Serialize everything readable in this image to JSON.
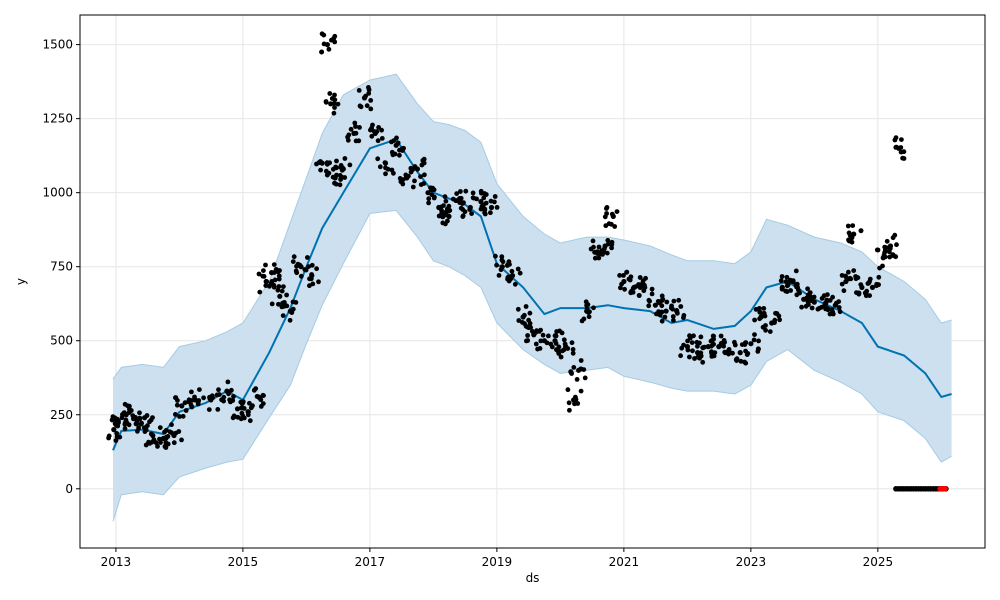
{
  "chart_data": {
    "type": "line",
    "title": "",
    "xlabel": "ds",
    "ylabel": "y",
    "xlim": [
      "2012-06-08",
      "2026-09-09"
    ],
    "ylim": [
      -200,
      1600
    ],
    "xticks": [
      "2013",
      "2015",
      "2017",
      "2019",
      "2021",
      "2023",
      "2025"
    ],
    "yticks": [
      0,
      250,
      500,
      750,
      1000,
      1250,
      1500
    ],
    "grid": true,
    "legend": "none",
    "colors": {
      "observed": "#000000",
      "forecast_line": "#0072B2",
      "interval_fill": "#cce0ef",
      "interval_edge": "#a6cbe3",
      "highlight": "#ff0000",
      "grid": "#e6e6e6"
    },
    "series": [
      {
        "kind": "forecast_yhat",
        "x": [
          "2012-12-15",
          "2013-02-01",
          "2013-06-01",
          "2013-10-01",
          "2014-01-01",
          "2014-06-01",
          "2014-10-01",
          "2015-01-01",
          "2015-06-01",
          "2015-10-01",
          "2016-01-01",
          "2016-04-01",
          "2016-08-01",
          "2017-01-01",
          "2017-06-01",
          "2017-10-01",
          "2018-01-01",
          "2018-04-01",
          "2018-07-01",
          "2018-10-01",
          "2019-01-01",
          "2019-06-01",
          "2019-10-01",
          "2020-01-01",
          "2020-06-01",
          "2020-10-01",
          "2021-01-01",
          "2021-06-01",
          "2021-10-01",
          "2022-01-01",
          "2022-06-01",
          "2022-10-01",
          "2023-01-01",
          "2023-04-01",
          "2023-08-01",
          "2024-01-01",
          "2024-06-01",
          "2024-10-01",
          "2025-01-01",
          "2025-06-01",
          "2025-10-01",
          "2026-01-01",
          "2026-03-01"
        ],
        "y": [
          130,
          195,
          200,
          185,
          260,
          290,
          330,
          300,
          460,
          610,
          750,
          880,
          1000,
          1150,
          1180,
          1070,
          1000,
          980,
          960,
          920,
          760,
          680,
          590,
          610,
          610,
          620,
          610,
          600,
          560,
          570,
          540,
          550,
          600,
          680,
          700,
          640,
          600,
          560,
          480,
          450,
          390,
          310,
          320
        ]
      },
      {
        "kind": "forecast_upper",
        "x": [
          "2012-12-15",
          "2013-02-01",
          "2013-06-01",
          "2013-10-01",
          "2014-01-01",
          "2014-06-01",
          "2014-10-01",
          "2015-01-01",
          "2015-06-01",
          "2015-10-01",
          "2016-01-01",
          "2016-04-01",
          "2016-08-01",
          "2017-01-01",
          "2017-06-01",
          "2017-10-01",
          "2018-01-01",
          "2018-04-01",
          "2018-07-01",
          "2018-10-01",
          "2019-01-01",
          "2019-06-01",
          "2019-10-01",
          "2020-01-01",
          "2020-06-01",
          "2020-10-01",
          "2021-01-01",
          "2021-06-01",
          "2021-10-01",
          "2022-01-01",
          "2022-06-01",
          "2022-10-01",
          "2023-01-01",
          "2023-04-01",
          "2023-08-01",
          "2024-01-01",
          "2024-06-01",
          "2024-10-01",
          "2025-01-01",
          "2025-06-01",
          "2025-10-01",
          "2026-01-01",
          "2026-03-01"
        ],
        "y": [
          370,
          410,
          420,
          410,
          480,
          500,
          530,
          560,
          700,
          900,
          1050,
          1200,
          1330,
          1380,
          1400,
          1300,
          1240,
          1230,
          1210,
          1170,
          1030,
          920,
          860,
          830,
          850,
          850,
          840,
          820,
          790,
          770,
          770,
          760,
          800,
          910,
          890,
          850,
          830,
          800,
          750,
          700,
          640,
          560,
          570
        ]
      },
      {
        "kind": "forecast_lower",
        "x": [
          "2012-12-15",
          "2013-02-01",
          "2013-06-01",
          "2013-10-01",
          "2014-01-01",
          "2014-06-01",
          "2014-10-01",
          "2015-01-01",
          "2015-06-01",
          "2015-10-01",
          "2016-01-01",
          "2016-04-01",
          "2016-08-01",
          "2017-01-01",
          "2017-06-01",
          "2017-10-01",
          "2018-01-01",
          "2018-04-01",
          "2018-07-01",
          "2018-10-01",
          "2019-01-01",
          "2019-06-01",
          "2019-10-01",
          "2020-01-01",
          "2020-06-01",
          "2020-10-01",
          "2021-01-01",
          "2021-06-01",
          "2021-10-01",
          "2022-01-01",
          "2022-06-01",
          "2022-10-01",
          "2023-01-01",
          "2023-04-01",
          "2023-08-01",
          "2024-01-01",
          "2024-06-01",
          "2024-10-01",
          "2025-01-01",
          "2025-06-01",
          "2025-10-01",
          "2026-01-01",
          "2026-03-01"
        ],
        "y": [
          -110,
          -20,
          -10,
          -20,
          40,
          70,
          90,
          100,
          240,
          350,
          490,
          620,
          760,
          930,
          940,
          850,
          770,
          750,
          720,
          680,
          560,
          470,
          420,
          390,
          400,
          410,
          380,
          360,
          340,
          330,
          330,
          320,
          350,
          430,
          470,
          400,
          360,
          320,
          260,
          230,
          170,
          90,
          110
        ]
      },
      {
        "kind": "observed",
        "x": [
          "2012-12-20",
          "2013-01-15",
          "2013-03-01",
          "2013-05-01",
          "2013-06-15",
          "2013-08-01",
          "2013-10-01",
          "2013-12-01",
          "2014-01-15",
          "2014-04-01",
          "2014-07-01",
          "2014-10-01",
          "2014-12-01",
          "2015-02-01",
          "2015-04-01",
          "2015-05-15",
          "2015-06-15",
          "2015-08-01",
          "2015-10-01",
          "2015-12-01",
          "2016-02-01",
          "2016-04-01",
          "2016-05-01",
          "2016-05-20",
          "2016-06-15",
          "2016-08-01",
          "2016-10-01",
          "2016-12-01",
          "2017-02-01",
          "2017-04-01",
          "2017-06-01",
          "2017-08-01",
          "2017-10-01",
          "2017-12-01",
          "2018-02-01",
          "2018-04-01",
          "2018-06-01",
          "2018-08-01",
          "2018-10-01",
          "2018-12-01",
          "2019-02-01",
          "2019-04-01",
          "2019-06-01",
          "2019-08-01",
          "2019-10-01",
          "2019-12-01",
          "2020-02-01",
          "2020-03-20",
          "2020-04-15",
          "2020-06-01",
          "2020-08-01",
          "2020-09-15",
          "2020-11-01",
          "2021-01-01",
          "2021-03-01",
          "2021-05-01",
          "2021-07-01",
          "2021-09-01",
          "2021-11-01",
          "2022-01-01",
          "2022-03-01",
          "2022-05-01",
          "2022-07-01",
          "2022-09-01",
          "2022-11-01",
          "2023-01-01",
          "2023-03-01",
          "2023-05-01",
          "2023-07-01",
          "2023-09-01",
          "2023-11-01",
          "2024-01-01",
          "2024-03-01",
          "2024-05-01",
          "2024-07-01",
          "2024-08-15",
          "2024-10-01",
          "2024-12-01",
          "2025-02-01",
          "2025-03-15",
          "2025-05-01"
        ],
        "y": [
          200,
          230,
          250,
          220,
          240,
          180,
          170,
          180,
          280,
          300,
          300,
          330,
          270,
          260,
          310,
          700,
          730,
          650,
          600,
          750,
          720,
          1100,
          1500,
          1300,
          1050,
          1080,
          1200,
          1320,
          1200,
          1100,
          1160,
          1050,
          1080,
          1000,
          950,
          920,
          980,
          950,
          970,
          950,
          750,
          720,
          580,
          520,
          500,
          500,
          480,
          300,
          400,
          600,
          800,
          820,
          920,
          700,
          680,
          680,
          620,
          600,
          600,
          480,
          460,
          480,
          480,
          460,
          460,
          490,
          580,
          560,
          680,
          700,
          640,
          630,
          620,
          620,
          700,
          860,
          680,
          680,
          780,
          820,
          1150
        ]
      },
      {
        "kind": "future_zero",
        "x": [
          "2025-04-15",
          "2026-02-01"
        ],
        "y": [
          0,
          0
        ]
      },
      {
        "kind": "future_zero_highlight",
        "x": [
          "2025-12-25",
          "2026-02-01"
        ],
        "y": [
          0,
          0
        ]
      }
    ]
  }
}
